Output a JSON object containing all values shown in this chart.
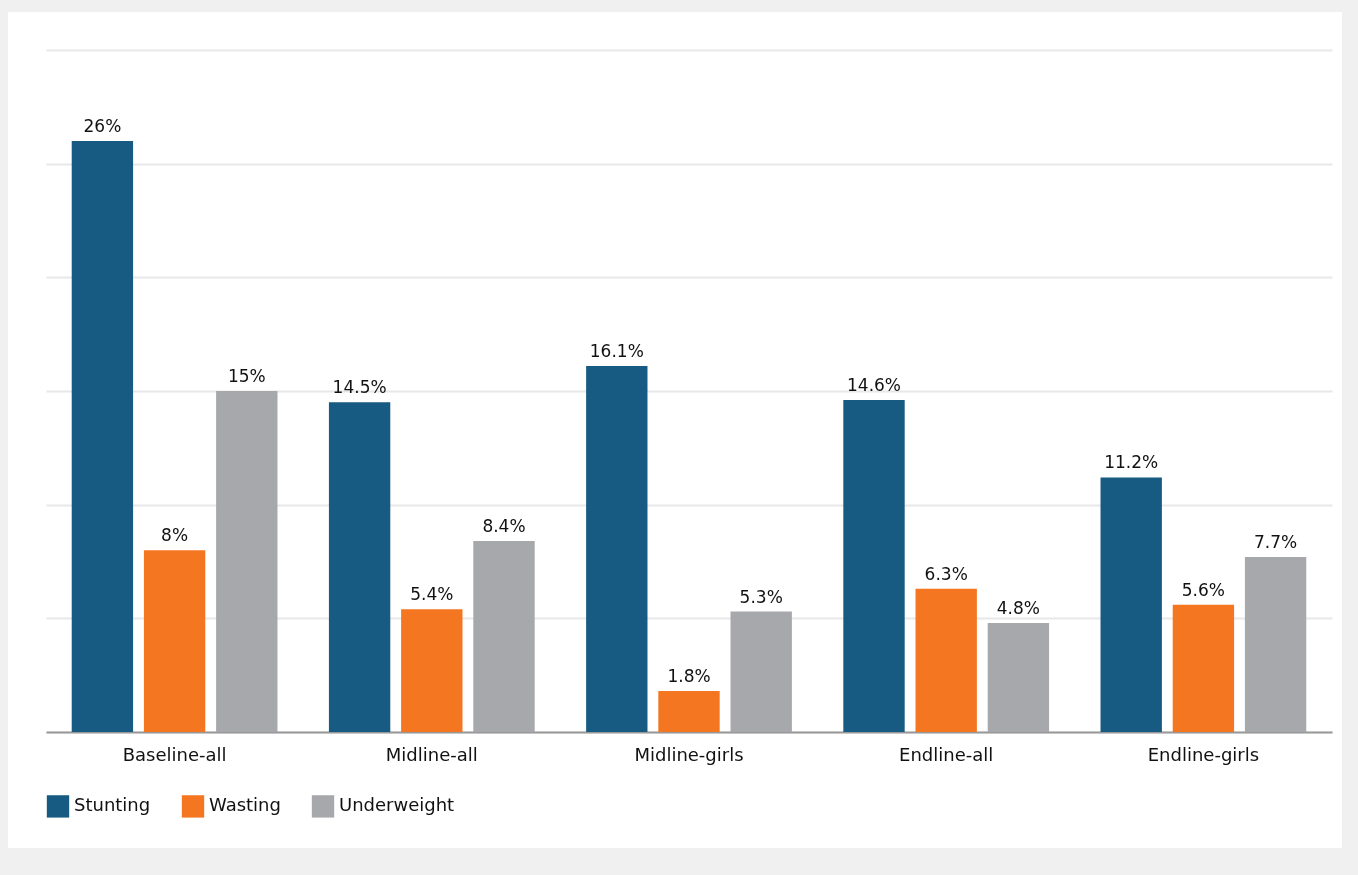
{
  "chart_data": {
    "type": "bar",
    "categories": [
      "Baseline-all",
      "Midline-all",
      "Midline-girls",
      "Endline-all",
      "Endline-girls"
    ],
    "series": [
      {
        "name": "Stunting",
        "color": "#175a82",
        "values": [
          26,
          14.5,
          16.1,
          14.6,
          11.2
        ],
        "value_labels": [
          "26%",
          "14.5%",
          "16.1%",
          "14.6%",
          "11.2%"
        ]
      },
      {
        "name": "Wasting",
        "color": "#f47621",
        "values": [
          8,
          5.4,
          1.8,
          6.3,
          5.6
        ],
        "value_labels": [
          "8%",
          "5.4%",
          "1.8%",
          "6.3%",
          "5.6%"
        ]
      },
      {
        "name": "Underweight",
        "color": "#a7a8ab",
        "values": [
          15,
          8.4,
          5.3,
          4.8,
          7.7
        ],
        "value_labels": [
          "15%",
          "8.4%",
          "5.3%",
          "4.8%",
          "7.7%"
        ]
      }
    ],
    "ylim": [
      0,
      30
    ],
    "yticks": [
      0,
      5,
      10,
      15,
      20,
      25,
      30
    ],
    "grid": "y",
    "tick_labels": "x",
    "legend": "bottom"
  }
}
